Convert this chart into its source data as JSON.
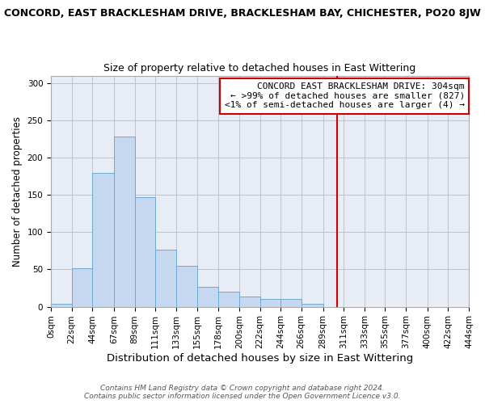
{
  "title": "CONCORD, EAST BRACKLESHAM DRIVE, BRACKLESHAM BAY, CHICHESTER, PO20 8JW",
  "subtitle": "Size of property relative to detached houses in East Wittering",
  "xlabel": "Distribution of detached houses by size in East Wittering",
  "ylabel": "Number of detached properties",
  "bin_edges": [
    0,
    22,
    44,
    67,
    89,
    111,
    133,
    155,
    178,
    200,
    222,
    244,
    266,
    289,
    311,
    333,
    355,
    377,
    400,
    422,
    444
  ],
  "bar_heights": [
    4,
    52,
    180,
    228,
    147,
    76,
    55,
    27,
    20,
    14,
    10,
    10,
    4,
    0,
    0,
    0,
    0,
    0,
    0,
    0
  ],
  "bar_color": "#c5d8f0",
  "bar_edge_color": "#6aaad4",
  "grid_color": "#bbbbcc",
  "plot_bg_color": "#e8edf5",
  "figure_bg_color": "#ffffff",
  "vline_x": 304,
  "vline_color": "#cc0000",
  "annotation_text": "CONCORD EAST BRACKLESHAM DRIVE: 304sqm\n← >99% of detached houses are smaller (827)\n<1% of semi-detached houses are larger (4) →",
  "annotation_box_color": "#ffffff",
  "annotation_box_edge_color": "#cc0000",
  "ylim": [
    0,
    310
  ],
  "footnote": "Contains HM Land Registry data © Crown copyright and database right 2024.\nContains public sector information licensed under the Open Government Licence v3.0.",
  "title_fontsize": 9,
  "subtitle_fontsize": 9,
  "xlabel_fontsize": 9.5,
  "ylabel_fontsize": 8.5,
  "tick_fontsize": 7.5,
  "annotation_fontsize": 8,
  "footnote_fontsize": 6.5
}
